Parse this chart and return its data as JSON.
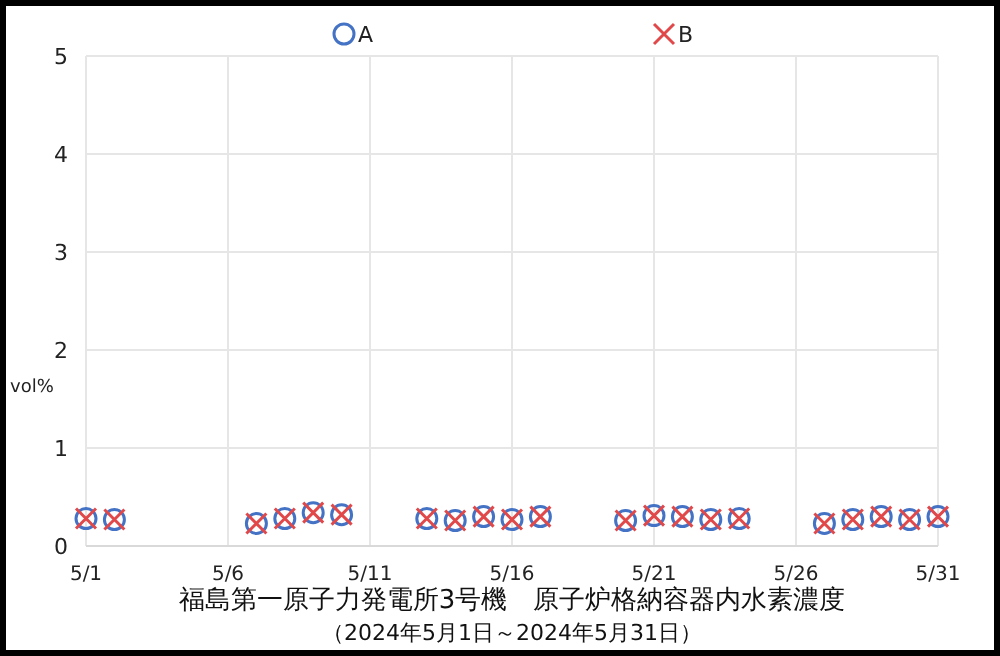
{
  "chart_data": {
    "type": "scatter",
    "title": "福島第一原子力発電所3号機　原子炉格納容器内水素濃度",
    "subtitle": "（2024年5月1日～2024年5月31日）",
    "ylabel": "vol%",
    "x": [
      "--05-01",
      "--05-02",
      "--05-07",
      "--05-08",
      "--05-09",
      "--05-10",
      "--05-13",
      "--05-14",
      "--05-15",
      "--05-16",
      "--05-17",
      "--05-20",
      "--05-21",
      "--05-22",
      "--05-23",
      "--05-24",
      "--05-27",
      "--05-28",
      "--05-29",
      "--05-30",
      "--05-31"
    ],
    "series": [
      {
        "name": "A",
        "color": "#4472c4",
        "marker": "circle",
        "values": [
          0.28,
          0.27,
          0.23,
          0.28,
          0.34,
          0.32,
          0.28,
          0.26,
          0.3,
          0.27,
          0.3,
          0.26,
          0.31,
          0.3,
          0.27,
          0.28,
          0.23,
          0.27,
          0.3,
          0.27,
          0.3
        ]
      },
      {
        "name": "B",
        "color": "#e0484a",
        "marker": "cross",
        "values": [
          0.28,
          0.27,
          0.23,
          0.28,
          0.34,
          0.32,
          0.28,
          0.26,
          0.3,
          0.27,
          0.3,
          0.26,
          0.31,
          0.3,
          0.27,
          0.28,
          0.23,
          0.27,
          0.3,
          0.27,
          0.3
        ]
      }
    ],
    "xlim": [
      "--05-01",
      "--05-31"
    ],
    "xticks": [
      {
        "value": "--05-01",
        "label": "5/1"
      },
      {
        "value": "--05-06",
        "label": "5/6"
      },
      {
        "value": "--05-11",
        "label": "5/11"
      },
      {
        "value": "--05-16",
        "label": "5/16"
      },
      {
        "value": "--05-21",
        "label": "5/21"
      },
      {
        "value": "--05-26",
        "label": "5/26"
      },
      {
        "value": "--05-31",
        "label": "5/31"
      }
    ],
    "ylim": [
      0,
      5
    ],
    "yticks": [
      0,
      1,
      2,
      3,
      4,
      5
    ],
    "grid": true,
    "legend": "top"
  }
}
